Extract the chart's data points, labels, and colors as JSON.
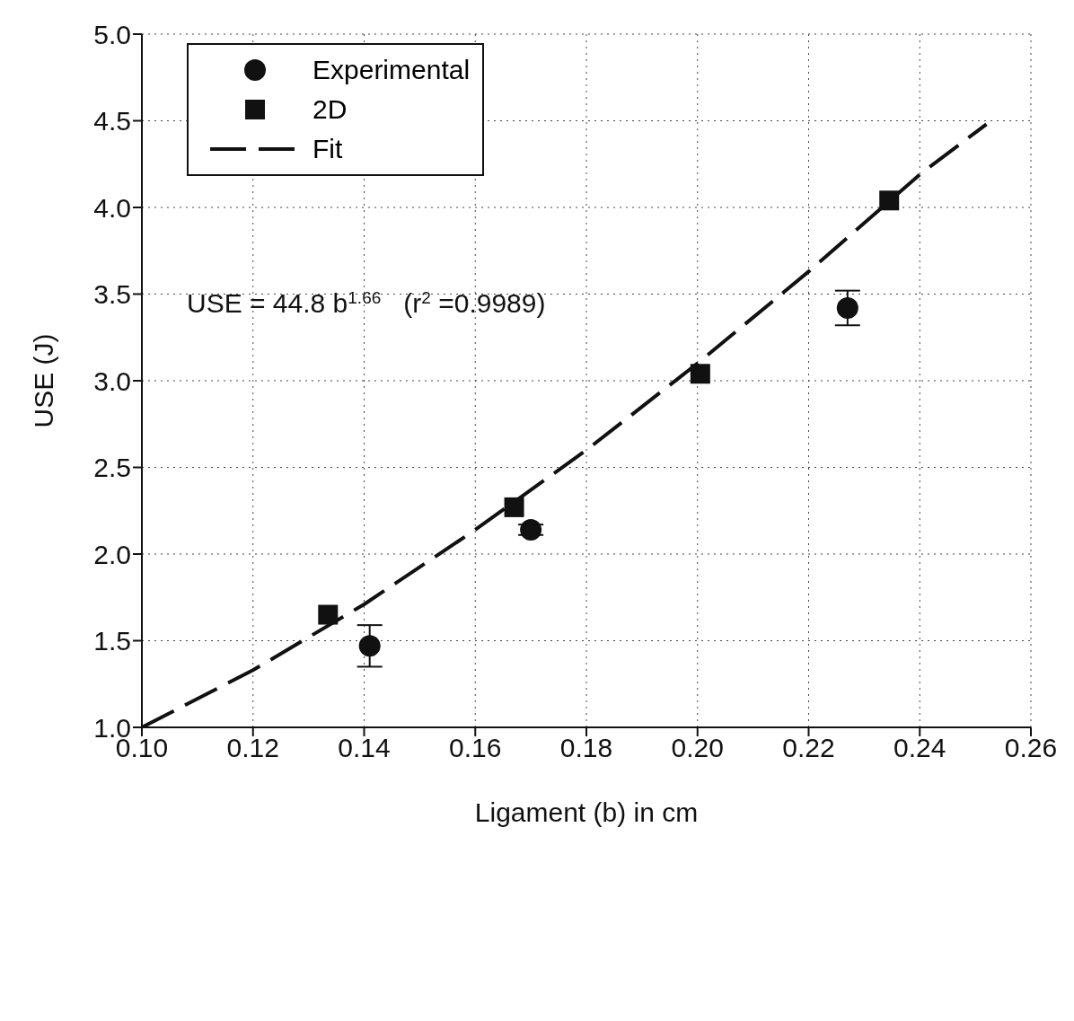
{
  "chart_data": {
    "type": "scatter",
    "xlabel": "Ligament (b) in cm",
    "ylabel": "USE (J)",
    "xlim": [
      0.1,
      0.26
    ],
    "xticks": [
      {
        "value": 0.1,
        "label": "0.10"
      },
      {
        "value": 0.12,
        "label": "0.12"
      },
      {
        "value": 0.14,
        "label": "0.14"
      },
      {
        "value": 0.16,
        "label": "0.16"
      },
      {
        "value": 0.18,
        "label": "0.18"
      },
      {
        "value": 0.2,
        "label": "0.20"
      },
      {
        "value": 0.22,
        "label": "0.22"
      },
      {
        "value": 0.24,
        "label": "0.24"
      },
      {
        "value": 0.26,
        "label": "0.26"
      }
    ],
    "ylim": [
      1,
      5
    ],
    "yticks": [
      {
        "value": 1,
        "label": "1.0"
      },
      {
        "value": 1.5,
        "label": "1.5"
      },
      {
        "value": 2,
        "label": "2.0"
      },
      {
        "value": 2.5,
        "label": "2.5"
      },
      {
        "value": 3,
        "label": "3.0"
      },
      {
        "value": 3.5,
        "label": "3.5"
      },
      {
        "value": 4,
        "label": "4.0"
      },
      {
        "value": 4.5,
        "label": "4.5"
      },
      {
        "value": 5,
        "label": "5.0"
      }
    ],
    "grid": true,
    "legend": "top left",
    "annotations": [
      "USE = 44.8 b$^{1.66}$   (r$^{2}$ =0.9989)"
    ],
    "series": [
      {
        "name": "Experimental",
        "marker": "circle",
        "color": "#111111",
        "x": [
          0.141,
          0.17,
          0.227
        ],
        "values": [
          1.47,
          2.14,
          3.42
        ],
        "errors": [
          0.12,
          0.03,
          0.1
        ]
      },
      {
        "name": "2D",
        "marker": "square",
        "color": "#111111",
        "x": [
          0.1335,
          0.167,
          0.2005,
          0.2345
        ],
        "values": [
          1.65,
          2.27,
          3.04,
          4.04
        ]
      },
      {
        "name": "Fit",
        "type": "line",
        "marker": "none",
        "line_style": "dashed",
        "color": "#111111",
        "x": [
          0.1,
          0.12,
          0.14,
          0.16,
          0.18,
          0.2,
          0.22,
          0.24,
          0.252
        ],
        "values": [
          1.0,
          1.33,
          1.71,
          2.14,
          2.6,
          3.1,
          3.63,
          4.19,
          4.48
        ]
      }
    ]
  }
}
